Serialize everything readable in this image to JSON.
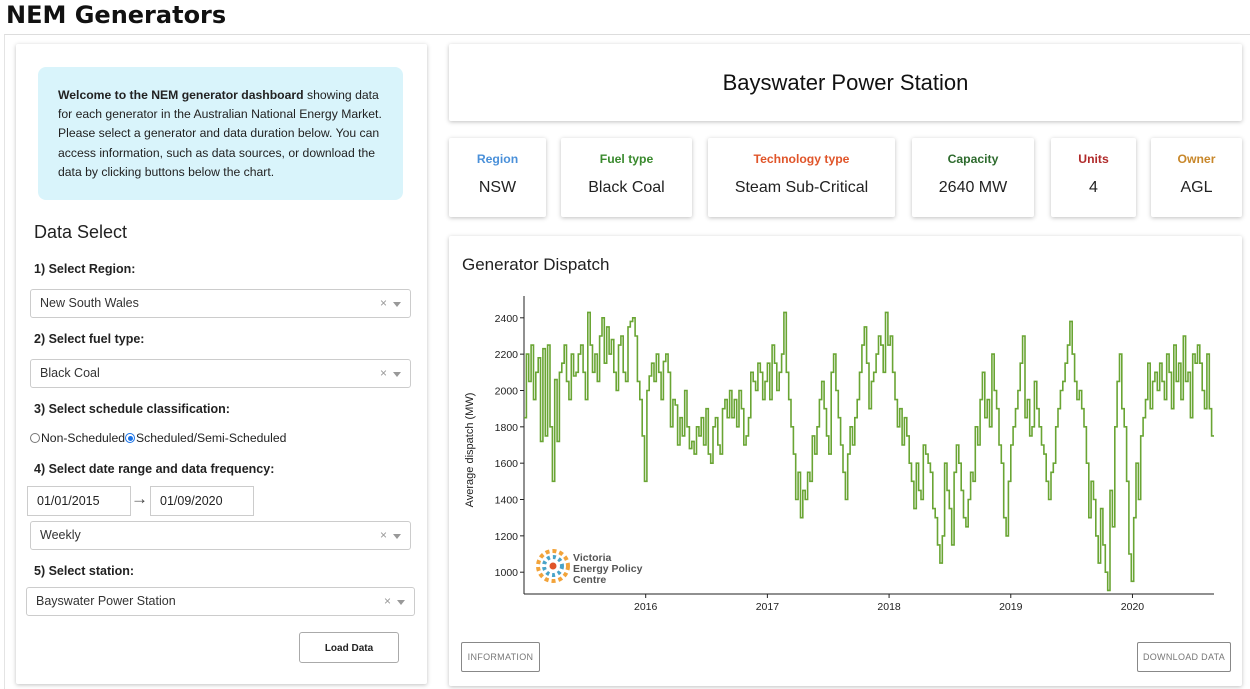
{
  "app_title": "NEM Generators",
  "welcome": {
    "bold": "Welcome to the NEM generator dashboard",
    "text": " showing data for each generator in the Australian National Energy Market. Please select a generator and data duration below. You can access information, such as data sources, or download the data by clicking buttons below the chart."
  },
  "data_select": {
    "title": "Data Select",
    "region_label": "1) Select Region:",
    "region_value": "New South Wales",
    "fuel_label": "2) Select fuel type:",
    "fuel_value": "Black Coal",
    "schedule_label": "3) Select schedule classification:",
    "schedule_options": [
      "Non-Scheduled",
      "Scheduled/Semi-Scheduled"
    ],
    "schedule_selected": "Scheduled/Semi-Scheduled",
    "date_label": "4) Select date range and data frequency:",
    "date_start": "01/01/2015",
    "date_end": "01/09/2020",
    "frequency_value": "Weekly",
    "station_label": "5) Select station:",
    "station_value": "Bayswater Power Station",
    "clear_symbol": "×",
    "arrow_symbol": "→",
    "load_button": "Load Data"
  },
  "station": {
    "title": "Bayswater Power Station",
    "cards": [
      {
        "title": "Region",
        "value": "NSW",
        "color": "#4a90d9"
      },
      {
        "title": "Fuel type",
        "value": "Black Coal",
        "color": "#3a8a2e"
      },
      {
        "title": "Technology type",
        "value": "Steam Sub-Critical",
        "color": "#e0552a"
      },
      {
        "title": "Capacity",
        "value": "2640 MW",
        "color": "#2e6b2e"
      },
      {
        "title": "Units",
        "value": "4",
        "color": "#b02a2a"
      },
      {
        "title": "Owner",
        "value": "AGL",
        "color": "#c8872a"
      }
    ]
  },
  "chart_section": {
    "title": "Generator Dispatch",
    "logo_lines": [
      "Victoria",
      "Energy Policy",
      "Centre"
    ],
    "info_button": "INFORMATION",
    "download_button": "DOWNLOAD DATA"
  },
  "chart_data": {
    "type": "line",
    "line_shape": "step",
    "title": "",
    "xlabel": "",
    "ylabel": "Average dispatch (MW)",
    "color": "#6aa534",
    "x_range": [
      2015.0,
      2020.67
    ],
    "ylim": [
      880,
      2520
    ],
    "y_ticks": [
      1000,
      1200,
      1400,
      1600,
      1800,
      2000,
      2200,
      2400
    ],
    "x_ticks": [
      "2016",
      "2017",
      "2018",
      "2019",
      "2020"
    ],
    "grid": false,
    "x_start": 2015.0,
    "x_step_weeks": 1,
    "values": [
      1850,
      2200,
      2050,
      2250,
      1950,
      2100,
      2180,
      1720,
      2230,
      1750,
      2250,
      1800,
      1500,
      2060,
      1720,
      2100,
      2150,
      2250,
      2050,
      1950,
      2200,
      2080,
      2100,
      2200,
      2250,
      2100,
      1950,
      2430,
      2250,
      2100,
      2200,
      2050,
      2300,
      2400,
      2150,
      2350,
      2200,
      2280,
      2100,
      2000,
      2250,
      2300,
      2100,
      2050,
      2350,
      2380,
      2400,
      2300,
      2050,
      1950,
      1750,
      1500,
      2000,
      2080,
      2150,
      2050,
      2200,
      2100,
      1950,
      2160,
      2200,
      2100,
      1800,
      1950,
      1920,
      1700,
      1850,
      1750,
      2000,
      1800,
      1680,
      1720,
      1650,
      1800,
      1750,
      1850,
      1700,
      1900,
      1650,
      1600,
      1800,
      1850,
      1700,
      1650,
      1900,
      1950,
      1850,
      2000,
      1850,
      1950,
      1800,
      2000,
      1900,
      1700,
      1750,
      1850,
      2100,
      2050,
      2000,
      2150,
      2100,
      1950,
      2050,
      2150,
      1950,
      2250,
      2150,
      2000,
      2100,
      2200,
      2430,
      2100,
      1950,
      1800,
      1650,
      1400,
      1550,
      1300,
      1450,
      1400,
      1550,
      1500,
      1750,
      1650,
      1800,
      1950,
      2050,
      1900,
      1750,
      1650,
      2100,
      2200,
      2000,
      1850,
      1700,
      1550,
      1400,
      1650,
      1800,
      1700,
      1850,
      1950,
      2100,
      2250,
      2350,
      2150,
      1900,
      2050,
      2100,
      2200,
      2300,
      2250,
      2100,
      2430,
      2250,
      2300,
      2100,
      1950,
      1800,
      1900,
      1700,
      1850,
      1750,
      1600,
      1500,
      1350,
      1600,
      1450,
      1400,
      1700,
      1650,
      1600,
      1550,
      1350,
      1300,
      1150,
      1050,
      1200,
      1600,
      1450,
      1350,
      1150,
      1550,
      1700,
      1600,
      1450,
      1300,
      1250,
      1400,
      1550,
      1500,
      1800,
      1700,
      1950,
      2100,
      1850,
      1950,
      1800,
      2200,
      2000,
      1900,
      1700,
      1600,
      1300,
      1200,
      1500,
      1700,
      1800,
      1900,
      2000,
      2150,
      2300,
      1850,
      1950,
      1750,
      1800,
      2050,
      1900,
      1800,
      1700,
      1650,
      1500,
      1400,
      1550,
      1600,
      1800,
      1900,
      2000,
      2050,
      2150,
      2250,
      2380,
      2200,
      2050,
      1950,
      2000,
      1900,
      1800,
      1600,
      1300,
      1500,
      1400,
      1200,
      1050,
      1350,
      1150,
      1000,
      900,
      1450,
      1250,
      1800,
      2050,
      2200,
      1900,
      1800,
      1500,
      1100,
      950,
      1300,
      1600,
      1400,
      1750,
      1850,
      1950,
      2150,
      1900,
      2050,
      2100,
      2000,
      2150,
      2050,
      1950,
      2200,
      2100,
      1900,
      2250,
      2050,
      2150,
      1950,
      2300,
      2050,
      2100,
      1850,
      2200,
      2150,
      2250,
      2150,
      2000,
      1900,
      2200,
      1900,
      1750
    ]
  }
}
